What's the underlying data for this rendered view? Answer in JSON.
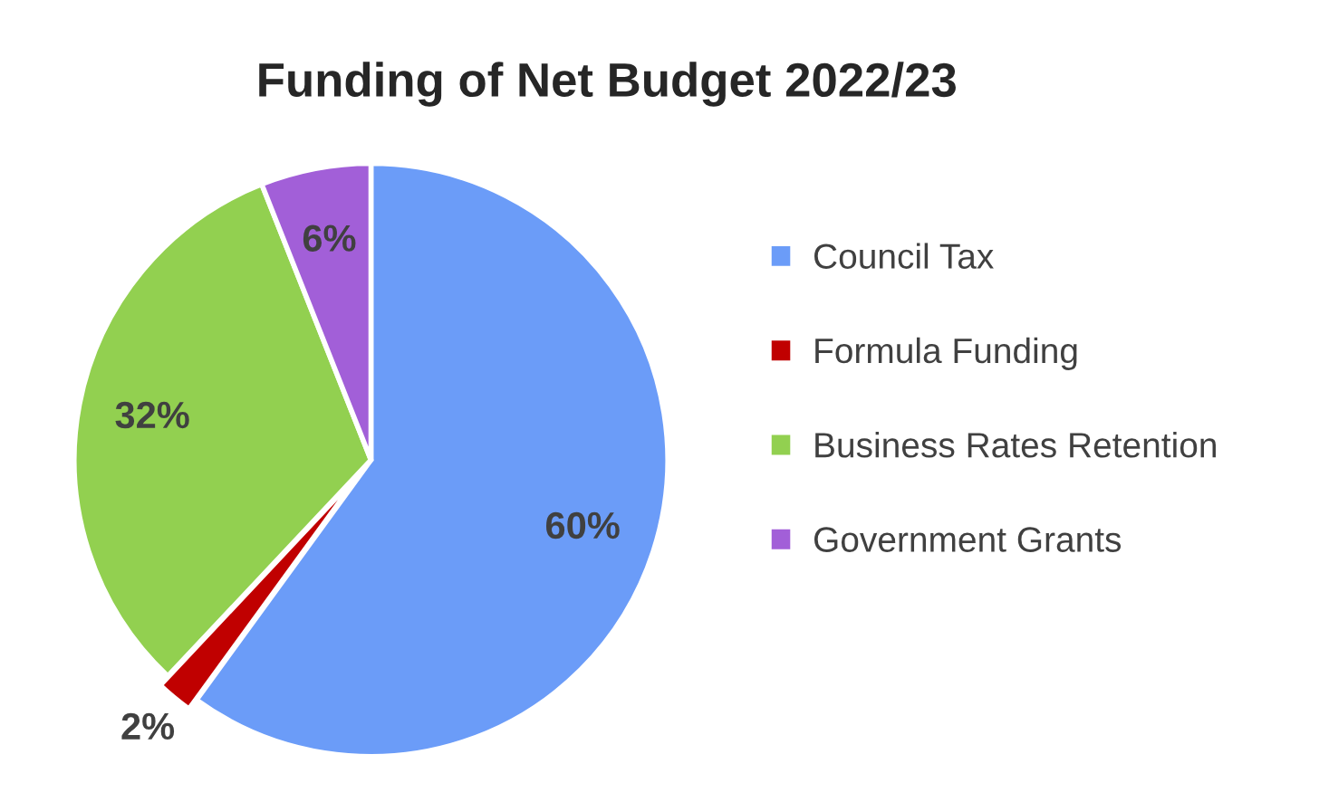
{
  "chart_data": {
    "type": "pie",
    "title": "Funding of Net Budget 2022/23",
    "categories": [
      "Council Tax",
      "Formula Funding",
      "Business Rates Retention",
      "Government Grants"
    ],
    "values": [
      60,
      2,
      32,
      6
    ],
    "colors": [
      "#6b9cf8",
      "#c00000",
      "#92d050",
      "#a25fd8"
    ],
    "value_labels": [
      "60%",
      "2%",
      "32%",
      "6%"
    ],
    "legend": "right"
  }
}
